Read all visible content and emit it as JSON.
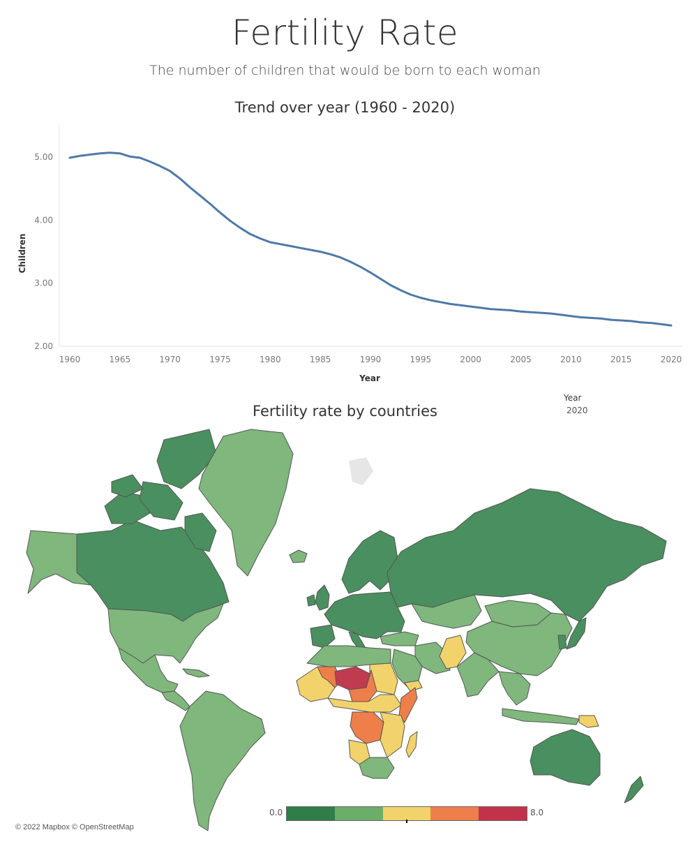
{
  "header": {
    "title": "Fertility Rate",
    "subtitle": "The number of children that would be born to each woman"
  },
  "filter": {
    "label": "Year",
    "value": "2020"
  },
  "map": {
    "title": "Fertility rate by countries",
    "credits": "© 2022 Mapbox © OpenStreetMap",
    "legend": {
      "min_label": "0.0",
      "max_label": "8.0",
      "colors": [
        "#2f7d48",
        "#6aae6a",
        "#f2d36b",
        "#ee7f4a",
        "#c2334b"
      ]
    },
    "palette": {
      "dark_green": "#4a8f5f",
      "light_green": "#7fb77c",
      "yellow": "#f2d36b",
      "orange": "#ee7f4a",
      "red": "#c03a50",
      "no_data": "#e6e6e6",
      "border": "#555555"
    }
  },
  "chart_data": {
    "type": "line",
    "title": "Trend over year (1960 - 2020)",
    "xlabel": "Year",
    "ylabel": "Children",
    "xlim": [
      1960,
      2020
    ],
    "ylim": [
      2.0,
      5.5
    ],
    "xticks": [
      1960,
      1965,
      1970,
      1975,
      1980,
      1985,
      1990,
      1995,
      2000,
      2005,
      2010,
      2015,
      2020
    ],
    "yticks": [
      "2.00",
      "3.00",
      "4.00",
      "5.00"
    ],
    "ytick_values": [
      2.0,
      3.0,
      4.0,
      5.0
    ],
    "line_color": "#4e79a7",
    "series": [
      {
        "x": [
          1960,
          1961,
          1962,
          1963,
          1964,
          1965,
          1966,
          1967,
          1968,
          1969,
          1970,
          1971,
          1972,
          1973,
          1974,
          1975,
          1976,
          1977,
          1978,
          1979,
          1980,
          1981,
          1982,
          1983,
          1984,
          1985,
          1986,
          1987,
          1988,
          1989,
          1990,
          1991,
          1992,
          1993,
          1994,
          1995,
          1996,
          1997,
          1998,
          1999,
          2000,
          2001,
          2002,
          2003,
          2004,
          2005,
          2006,
          2007,
          2008,
          2009,
          2010,
          2011,
          2012,
          2013,
          2014,
          2015,
          2016,
          2017,
          2018,
          2019,
          2020
        ],
        "values": [
          4.99,
          5.02,
          5.04,
          5.06,
          5.07,
          5.06,
          5.01,
          4.99,
          4.93,
          4.86,
          4.78,
          4.66,
          4.52,
          4.39,
          4.26,
          4.12,
          3.99,
          3.88,
          3.78,
          3.71,
          3.65,
          3.62,
          3.59,
          3.56,
          3.53,
          3.5,
          3.46,
          3.41,
          3.34,
          3.26,
          3.17,
          3.07,
          2.97,
          2.89,
          2.82,
          2.77,
          2.73,
          2.7,
          2.67,
          2.65,
          2.63,
          2.61,
          2.59,
          2.58,
          2.57,
          2.55,
          2.54,
          2.53,
          2.52,
          2.5,
          2.48,
          2.46,
          2.45,
          2.44,
          2.42,
          2.41,
          2.4,
          2.38,
          2.37,
          2.35,
          2.33
        ]
      }
    ]
  }
}
